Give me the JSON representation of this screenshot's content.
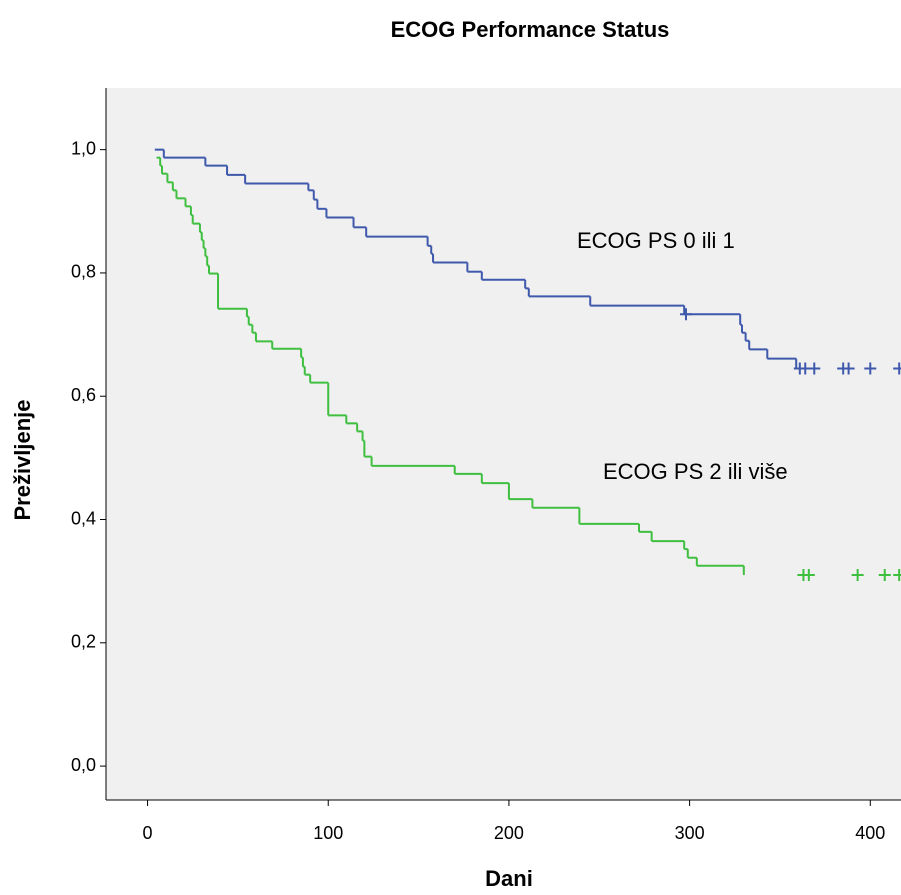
{
  "chart_data": {
    "type": "step",
    "title": "ECOG Performance Status",
    "x_label": "Dani",
    "y_label": "Preživljenje",
    "annotations": [
      "ECOG PS 0 ili 1",
      "ECOG PS 2 ili više"
    ],
    "xlim": [
      -23,
      417
    ],
    "ylim": [
      -0.055,
      1.1
    ],
    "xticks": [
      0,
      100,
      200,
      300,
      400
    ],
    "yticks": [
      {
        "value": 0,
        "label": "0,0"
      },
      {
        "value": 0.2,
        "label": "0,2"
      },
      {
        "value": 0.4,
        "label": "0,4"
      },
      {
        "value": 0.6,
        "label": "0,6"
      },
      {
        "value": 0.8,
        "label": "0,8"
      },
      {
        "value": 1,
        "label": "1,0"
      }
    ],
    "background": "#f0f0f0",
    "series": [
      {
        "color": "#3e58ac",
        "x": [
          4,
          9,
          32,
          44,
          54,
          89,
          92,
          94,
          99,
          114,
          121,
          155,
          157,
          158,
          177,
          185,
          209,
          211,
          245,
          297,
          328,
          329,
          331,
          333,
          343,
          359,
          369
        ],
        "values": [
          1.0,
          0.987,
          0.974,
          0.959,
          0.945,
          0.934,
          0.919,
          0.904,
          0.89,
          0.874,
          0.859,
          0.844,
          0.831,
          0.817,
          0.802,
          0.789,
          0.775,
          0.762,
          0.747,
          0.733,
          0.716,
          0.703,
          0.69,
          0.676,
          0.661,
          0.645,
          0.645
        ],
        "censored_x": [
          298,
          361,
          364,
          369,
          385,
          388,
          400,
          416
        ],
        "censored_values": [
          0.733,
          0.645,
          0.645,
          0.645,
          0.645,
          0.645,
          0.645,
          0.645
        ]
      },
      {
        "color": "#3fbf3f",
        "x": [
          5,
          7,
          8,
          11,
          14,
          16,
          21,
          24,
          25,
          29,
          30,
          31,
          32,
          33,
          34,
          39,
          55,
          56,
          58,
          60,
          69,
          85,
          86,
          87,
          90,
          100,
          110,
          116,
          119,
          120,
          124,
          170,
          185,
          200,
          213,
          239,
          272,
          279,
          297,
          299,
          304,
          330
        ],
        "values": [
          0.987,
          0.974,
          0.961,
          0.947,
          0.934,
          0.921,
          0.908,
          0.894,
          0.88,
          0.866,
          0.853,
          0.84,
          0.827,
          0.812,
          0.799,
          0.742,
          0.729,
          0.716,
          0.703,
          0.689,
          0.677,
          0.663,
          0.648,
          0.635,
          0.622,
          0.569,
          0.556,
          0.543,
          0.528,
          0.502,
          0.487,
          0.474,
          0.459,
          0.433,
          0.419,
          0.393,
          0.38,
          0.365,
          0.352,
          0.338,
          0.325,
          0.31
        ],
        "censored_x": [
          363,
          366,
          393,
          408,
          416
        ],
        "censored_values": [
          0.31,
          0.31,
          0.31,
          0.31,
          0.31
        ]
      }
    ]
  }
}
